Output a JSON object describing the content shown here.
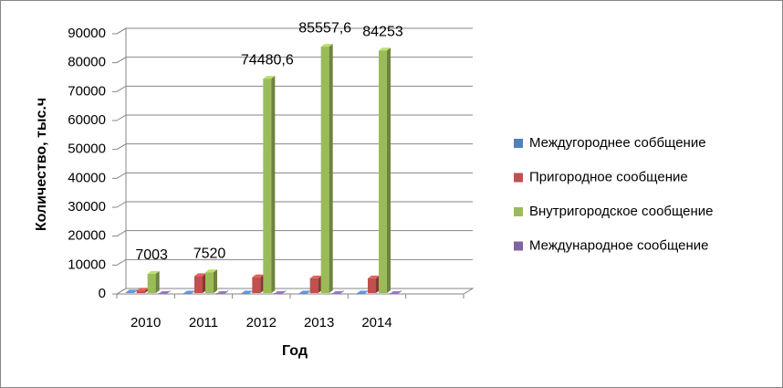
{
  "chart_data": {
    "type": "bar3d",
    "x_label": "Год",
    "y_label": "Количество, тыс.ч",
    "categories": [
      "2010",
      "2011",
      "2012",
      "2013",
      "2014",
      null
    ],
    "series": [
      {
        "name": "Междугороднее соббщение",
        "color": "#4f81bd",
        "values": [
          500,
          200,
          200,
          200,
          200,
          null
        ]
      },
      {
        "name": "Пригородное сообщение",
        "color": "#c0504d",
        "values": [
          1200,
          6200,
          5800,
          5400,
          5400,
          null
        ]
      },
      {
        "name": "Внутригородское сообщение",
        "color": "#9bbb59",
        "values": [
          7003,
          7520,
          74480.6,
          85557.6,
          84253,
          null
        ],
        "value_labels": [
          "7003",
          "7520",
          "74480,6",
          "85557,6",
          "84253",
          null
        ]
      },
      {
        "name": "Международное сообщение",
        "color": "#8064a2",
        "values": [
          50,
          50,
          50,
          50,
          50,
          null
        ]
      }
    ],
    "ylim": [
      0,
      90000
    ],
    "yticks": [
      0,
      10000,
      20000,
      30000,
      40000,
      50000,
      60000,
      70000,
      80000,
      90000
    ],
    "grid": true,
    "legend": "right"
  }
}
